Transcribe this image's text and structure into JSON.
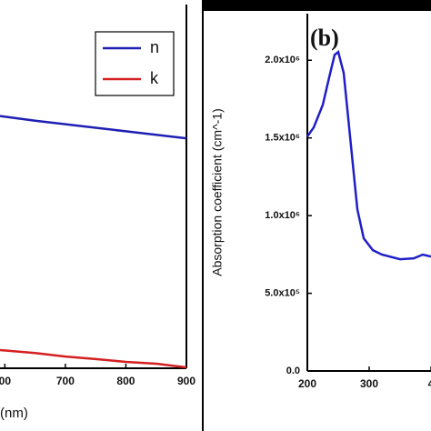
{
  "chart_data": [
    {
      "type": "line",
      "x_label": "(nm)",
      "x": [
        592,
        650,
        700,
        750,
        800,
        850,
        900
      ],
      "series": [
        {
          "name": "n",
          "color": "#1f1fb4",
          "values": [
            2.15,
            2.11,
            2.08,
            2.05,
            2.02,
            1.99,
            1.96
          ]
        },
        {
          "name": "k",
          "color": "#d42020",
          "values": [
            0.155,
            0.13,
            0.1,
            0.078,
            0.054,
            0.039,
            0.008
          ]
        }
      ],
      "xlim": [
        592,
        900
      ],
      "ylim": [
        0,
        3.1
      ],
      "xticks": [
        {
          "value": 600,
          "label": "00"
        },
        700,
        800,
        900
      ],
      "legend": "upper right"
    },
    {
      "type": "line",
      "panel_label": "(b)",
      "y_label": "Absorption coefficient (cm^-1)",
      "x": [
        200,
        210.3,
        225,
        235.3,
        244.1,
        250,
        258.8,
        269.1,
        280.9,
        291.2,
        305.9,
        320.6,
        350,
        372,
        386.8,
        400
      ],
      "series": [
        {
          "name": "Absorption coefficient",
          "color": "#1f1fc8",
          "values": [
            1509000,
            1567000,
            1713000,
            1889000,
            2035000,
            2053000,
            1918000,
            1509000,
            1041000,
            854000,
            778000,
            749000,
            719000,
            725000,
            749000,
            737000
          ]
        }
      ],
      "xlim": [
        200,
        400
      ],
      "ylim": [
        0,
        2300000
      ],
      "xticks": [
        200,
        300,
        {
          "value": 400,
          "label": "4"
        }
      ],
      "yticks": [
        {
          "value": 0,
          "label": "0.0"
        },
        {
          "value": 500000,
          "label": "5.0x10⁵"
        },
        {
          "value": 1000000,
          "label": "1.0x10⁶"
        },
        {
          "value": 1500000,
          "label": "1.5x10⁶"
        },
        {
          "value": 2000000,
          "label": "2.0x10⁶"
        }
      ]
    }
  ]
}
